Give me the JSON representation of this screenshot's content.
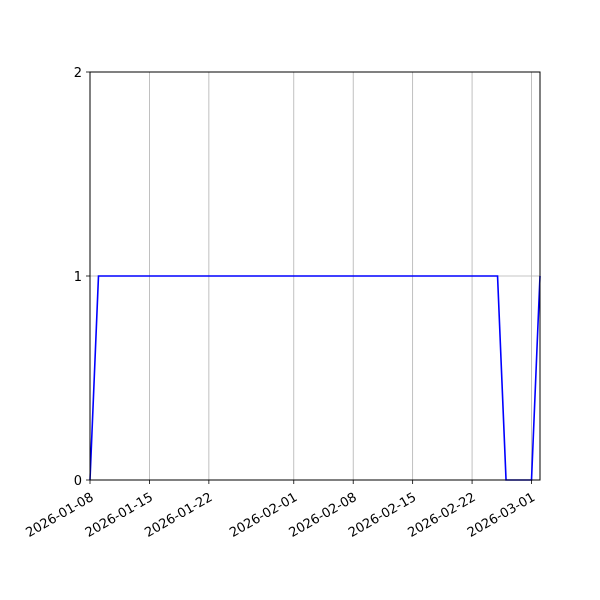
{
  "chart_data": {
    "type": "line",
    "title": "",
    "xlabel": "",
    "ylabel": "",
    "x_axis_type": "date",
    "xlim": [
      "2026-01-08",
      "2026-03-02"
    ],
    "ylim": [
      0,
      2
    ],
    "x_ticks": [
      "2026-01-08",
      "2026-01-15",
      "2026-01-22",
      "2026-02-01",
      "2026-02-08",
      "2026-02-15",
      "2026-02-22",
      "2026-03-01"
    ],
    "y_ticks": [
      0,
      1,
      2
    ],
    "grid": true,
    "series": [
      {
        "color": "#0000ff",
        "points": [
          {
            "x": "2026-01-08",
            "y": 0
          },
          {
            "x": "2026-01-09",
            "y": 1
          },
          {
            "x": "2026-02-25",
            "y": 1
          },
          {
            "x": "2026-02-26",
            "y": 0
          },
          {
            "x": "2026-03-01",
            "y": 0
          },
          {
            "x": "2026-03-02",
            "y": 1
          }
        ]
      }
    ]
  }
}
